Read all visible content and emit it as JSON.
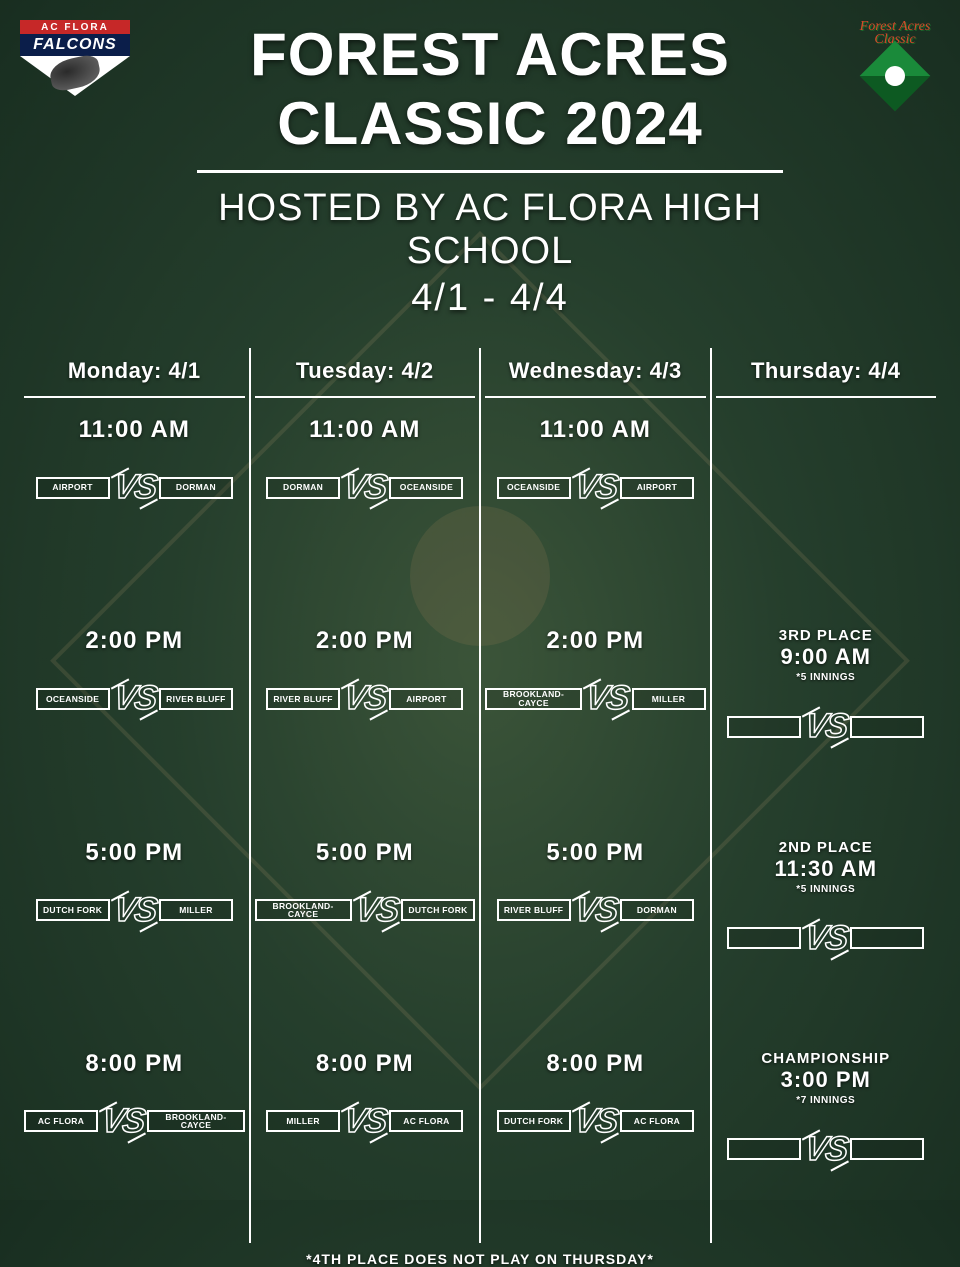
{
  "title": "FOREST ACRES CLASSIC 2024",
  "subtitle": "HOSTED BY AC FLORA HIGH SCHOOL",
  "date_range": "4/1 - 4/4",
  "footer_note": "*4TH PLACE DOES NOT PLAY ON THURSDAY*",
  "logos": {
    "left": {
      "top": "AC FLORA",
      "name": "FALCONS"
    },
    "right": {
      "line1": "Forest Acres",
      "line2": "Classic"
    }
  },
  "vs_label": "VS",
  "colors": {
    "text": "#ffffff",
    "accent_red": "#c62828",
    "accent_navy": "#0b1e4a",
    "accent_green": "#1a8a3a"
  },
  "days": [
    {
      "header": "Monday: 4/1",
      "slots": [
        {
          "title": "",
          "time": "11:00 AM",
          "note": "",
          "team1": "AIRPORT",
          "team2": "DORMAN"
        },
        {
          "title": "",
          "time": "2:00 PM",
          "note": "",
          "team1": "OCEANSIDE",
          "team2": "RIVER BLUFF"
        },
        {
          "title": "",
          "time": "5:00 PM",
          "note": "",
          "team1": "DUTCH FORK",
          "team2": "MILLER"
        },
        {
          "title": "",
          "time": "8:00 PM",
          "note": "",
          "team1": "AC FLORA",
          "team2": "BROOKLAND-CAYCE"
        }
      ]
    },
    {
      "header": "Tuesday: 4/2",
      "slots": [
        {
          "title": "",
          "time": "11:00 AM",
          "note": "",
          "team1": "DORMAN",
          "team2": "OCEANSIDE"
        },
        {
          "title": "",
          "time": "2:00 PM",
          "note": "",
          "team1": "RIVER BLUFF",
          "team2": "AIRPORT"
        },
        {
          "title": "",
          "time": "5:00 PM",
          "note": "",
          "team1": "BROOKLAND-CAYCE",
          "team2": "DUTCH FORK"
        },
        {
          "title": "",
          "time": "8:00 PM",
          "note": "",
          "team1": "MILLER",
          "team2": "AC FLORA"
        }
      ]
    },
    {
      "header": "Wednesday: 4/3",
      "slots": [
        {
          "title": "",
          "time": "11:00 AM",
          "note": "",
          "team1": "OCEANSIDE",
          "team2": "AIRPORT"
        },
        {
          "title": "",
          "time": "2:00 PM",
          "note": "",
          "team1": "BROOKLAND-CAYCE",
          "team2": "MILLER"
        },
        {
          "title": "",
          "time": "5:00 PM",
          "note": "",
          "team1": "RIVER BLUFF",
          "team2": "DORMAN"
        },
        {
          "title": "",
          "time": "8:00 PM",
          "note": "",
          "team1": "DUTCH FORK",
          "team2": "AC FLORA"
        }
      ]
    },
    {
      "header": "Thursday: 4/4",
      "slots": [
        {
          "title": "",
          "time": "",
          "note": "",
          "team1": "",
          "team2": "",
          "empty": true
        },
        {
          "title": "3RD PLACE",
          "time": "9:00 AM",
          "note": "*5 INNINGS",
          "team1": "",
          "team2": ""
        },
        {
          "title": "2ND PLACE",
          "time": "11:30 AM",
          "note": "*5 INNINGS",
          "team1": "",
          "team2": ""
        },
        {
          "title": "CHAMPIONSHIP",
          "time": "3:00 PM",
          "note": "*7 INNINGS",
          "team1": "",
          "team2": ""
        }
      ]
    }
  ]
}
